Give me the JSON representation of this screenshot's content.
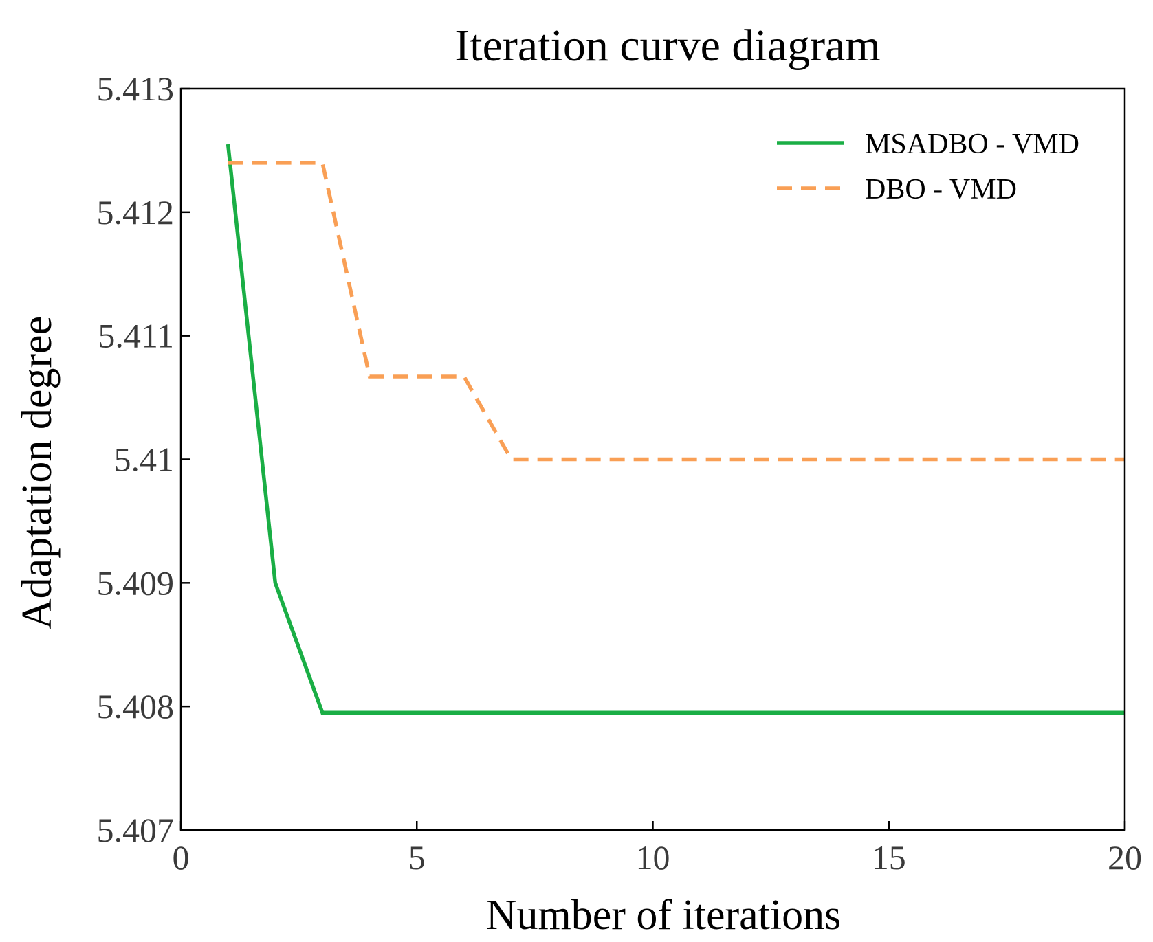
{
  "chart_data": {
    "type": "line",
    "title": "Iteration curve diagram",
    "xlabel": "Number of iterations",
    "ylabel": "Adaptation degree",
    "xlim": [
      0,
      20
    ],
    "ylim": [
      5.407,
      5.413
    ],
    "xticks": [
      0,
      5,
      10,
      15,
      20
    ],
    "xtick_labels": [
      "0",
      "5",
      "10",
      "15",
      "20"
    ],
    "yticks": [
      5.407,
      5.408,
      5.409,
      5.41,
      5.411,
      5.412,
      5.413
    ],
    "ytick_labels": [
      "5.407",
      "5.408",
      "5.409",
      "5.41",
      "5.411",
      "5.412",
      "5.413"
    ],
    "grid": false,
    "legend_position": "top-right",
    "series": [
      {
        "name": "MSADBO - VMD",
        "color": "#1aae45",
        "style": "solid",
        "x": [
          1,
          2,
          3,
          4,
          5,
          6,
          7,
          8,
          9,
          10,
          11,
          12,
          13,
          14,
          15,
          16,
          17,
          18,
          19,
          20
        ],
        "values": [
          5.41255,
          5.409,
          5.40795,
          5.40795,
          5.40795,
          5.40795,
          5.40795,
          5.40795,
          5.40795,
          5.40795,
          5.40795,
          5.40795,
          5.40795,
          5.40795,
          5.40795,
          5.40795,
          5.40795,
          5.40795,
          5.40795,
          5.40795
        ]
      },
      {
        "name": "DBO - VMD",
        "color": "#f99f55",
        "style": "dashed",
        "x": [
          1,
          2,
          3,
          4,
          5,
          6,
          7,
          8,
          9,
          10,
          11,
          12,
          13,
          14,
          15,
          16,
          17,
          18,
          19,
          20
        ],
        "values": [
          5.4124,
          5.4124,
          5.4124,
          5.41067,
          5.41067,
          5.41067,
          5.41,
          5.41,
          5.41,
          5.41,
          5.41,
          5.41,
          5.41,
          5.41,
          5.41,
          5.41,
          5.41,
          5.41,
          5.41,
          5.41
        ]
      }
    ]
  }
}
